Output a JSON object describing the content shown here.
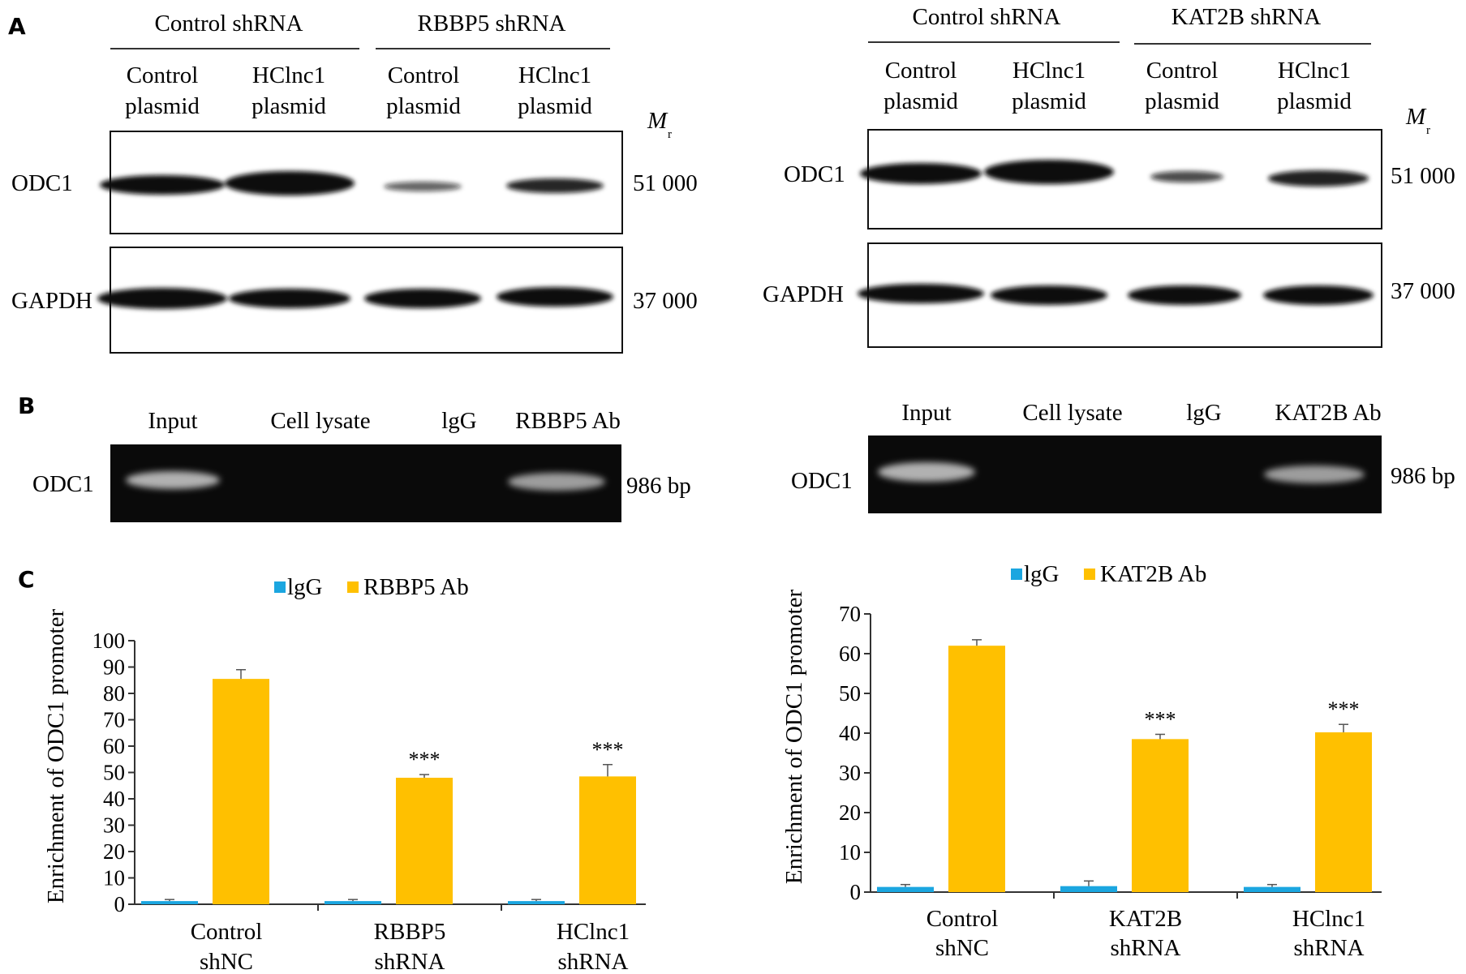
{
  "panel_labels": {
    "a": "A",
    "b": "B",
    "c": "C"
  },
  "blots": [
    {
      "group1": "Control shRNA",
      "group2": "RBBP5 shRNA",
      "lanes": [
        [
          "Control",
          "plasmid"
        ],
        [
          "HClnc1",
          "plasmid"
        ],
        [
          "Control",
          "plasmid"
        ],
        [
          "HClnc1",
          "plasmid"
        ]
      ],
      "mr_symbol": "M",
      "mr_subscript": "r",
      "rows": [
        {
          "label": "ODC1",
          "mw": "51 000"
        },
        {
          "label": "GAPDH",
          "mw": "37 000"
        }
      ]
    },
    {
      "group1": "Control shRNA",
      "group2": "KAT2B shRNA",
      "lanes": [
        [
          "Control",
          "plasmid"
        ],
        [
          "HClnc1",
          "plasmid"
        ],
        [
          "Control",
          "plasmid"
        ],
        [
          "HClnc1",
          "plasmid"
        ]
      ],
      "mr_symbol": "M",
      "mr_subscript": "r",
      "rows": [
        {
          "label": "ODC1",
          "mw": "51 000"
        },
        {
          "label": "GAPDH",
          "mw": "37 000"
        }
      ]
    }
  ],
  "gels": [
    {
      "lanes": [
        "Input",
        "Cell lysate",
        "lgG",
        "RBBP5 Ab"
      ],
      "row_label": "ODC1",
      "size": "986 bp"
    },
    {
      "lanes": [
        "Input",
        "Cell lysate",
        "lgG",
        "KAT2B Ab"
      ],
      "row_label": "ODC1",
      "size": "986 bp"
    }
  ],
  "colors": {
    "igg": "#1ba6e0",
    "ab": "#ffc000",
    "axis": "#333333"
  },
  "chart_data": [
    {
      "type": "bar",
      "ylabel": "Enrichment of ODC1 promoter",
      "ylim": [
        0,
        100
      ],
      "yticks": [
        "0",
        "10",
        "20",
        "30",
        "40",
        "50",
        "60",
        "70",
        "80",
        "90",
        "100"
      ],
      "categories": [
        [
          "Control",
          "shNC"
        ],
        [
          "RBBP5",
          "shRNA"
        ],
        [
          "HClnc1",
          "shRNA"
        ]
      ],
      "series": [
        {
          "name": "lgG",
          "values": [
            1.2,
            1.2,
            1.2
          ],
          "errors": [
            0.6,
            0.6,
            0.6
          ]
        },
        {
          "name": "RBBP5 Ab",
          "values": [
            85.5,
            48,
            48.5
          ],
          "errors": [
            3.5,
            1.2,
            4.5
          ]
        }
      ],
      "annotations": [
        "",
        "***",
        "***"
      ],
      "legend": "top-center"
    },
    {
      "type": "bar",
      "ylabel": "Enrichment of ODC1 promoter",
      "ylim": [
        0,
        70
      ],
      "yticks": [
        "0",
        "10",
        "20",
        "30",
        "40",
        "50",
        "60",
        "70"
      ],
      "categories": [
        [
          "Control",
          "shNC"
        ],
        [
          "KAT2B",
          "shRNA"
        ],
        [
          "HClnc1",
          "shRNA"
        ]
      ],
      "series": [
        {
          "name": "lgG",
          "values": [
            1.3,
            1.5,
            1.3
          ],
          "errors": [
            0.6,
            1.3,
            0.6
          ]
        },
        {
          "name": "KAT2B Ab",
          "values": [
            62,
            38.5,
            40.2
          ],
          "errors": [
            1.5,
            1.2,
            2.0
          ]
        }
      ],
      "annotations": [
        "",
        "***",
        "***"
      ],
      "legend": "top-center"
    }
  ]
}
